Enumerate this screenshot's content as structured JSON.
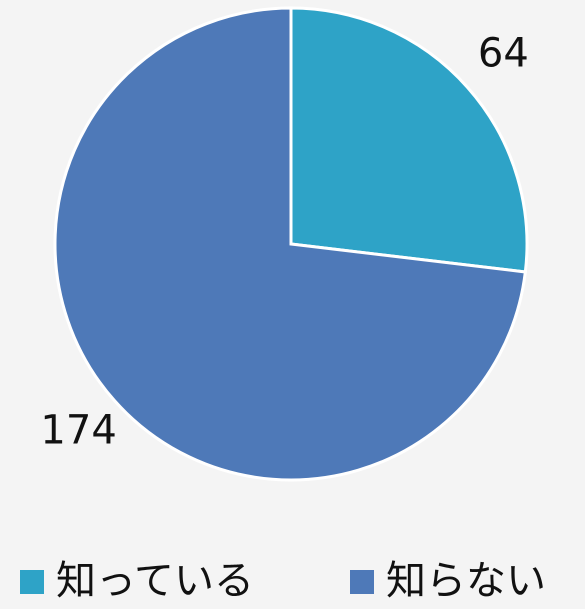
{
  "chart_data": {
    "type": "pie",
    "categories": [
      "知っている",
      "知らない"
    ],
    "values": [
      64,
      174
    ],
    "colors": [
      "#2ea3c7",
      "#4e79b8"
    ],
    "legend": "bottom"
  }
}
